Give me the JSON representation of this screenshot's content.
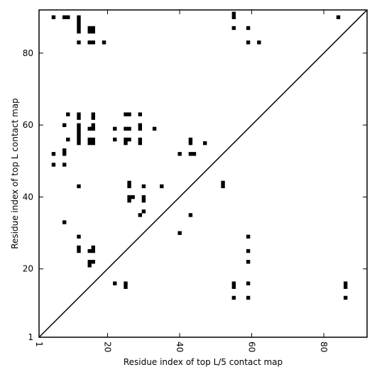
{
  "chart_data": {
    "type": "scatter",
    "title": "",
    "xlabel": "Residue index of top L/5 contact map",
    "ylabel": "Residue index of top L contact map",
    "xlim": [
      1,
      92
    ],
    "ylim": [
      1,
      92
    ],
    "xticks": [
      1,
      20,
      40,
      60,
      80
    ],
    "yticks": [
      1,
      20,
      40,
      60,
      80
    ],
    "xtick_labels": [
      "1",
      "20",
      "40",
      "60",
      "80"
    ],
    "ytick_labels": [
      "1",
      "20",
      "40",
      "60",
      "80"
    ],
    "x_tick_label_rotation_deg": -90,
    "grid": false,
    "legend": "none",
    "marker": "square",
    "marker_color": "#000000",
    "diagonal_line": true,
    "series": [
      {
        "points_upper_left": [
          [
            5,
            90
          ],
          [
            8,
            90
          ],
          [
            9,
            90
          ],
          [
            12,
            90
          ],
          [
            12,
            89
          ],
          [
            12,
            88
          ],
          [
            12,
            87
          ],
          [
            12,
            86
          ],
          [
            15,
            87
          ],
          [
            16,
            87
          ],
          [
            15,
            86
          ],
          [
            16,
            86
          ],
          [
            12,
            83
          ],
          [
            15,
            83
          ],
          [
            16,
            83
          ],
          [
            19,
            83
          ],
          [
            55,
            91
          ],
          [
            55,
            90
          ],
          [
            55,
            87
          ],
          [
            59,
            87
          ],
          [
            59,
            83
          ],
          [
            62,
            83
          ],
          [
            84,
            90
          ],
          [
            9,
            63
          ],
          [
            12,
            63
          ],
          [
            12,
            62
          ],
          [
            16,
            63
          ],
          [
            16,
            62
          ],
          [
            25,
            63
          ],
          [
            26,
            63
          ],
          [
            29,
            63
          ],
          [
            8,
            60
          ],
          [
            12,
            60
          ],
          [
            12,
            59
          ],
          [
            12,
            58
          ],
          [
            12,
            57
          ],
          [
            12,
            56
          ],
          [
            12,
            55
          ],
          [
            15,
            59
          ],
          [
            16,
            60
          ],
          [
            16,
            59
          ],
          [
            22,
            59
          ],
          [
            25,
            59
          ],
          [
            26,
            59
          ],
          [
            29,
            60
          ],
          [
            29,
            59
          ],
          [
            33,
            59
          ],
          [
            9,
            56
          ],
          [
            15,
            56
          ],
          [
            16,
            56
          ],
          [
            15,
            55
          ],
          [
            16,
            55
          ],
          [
            22,
            56
          ],
          [
            25,
            56
          ],
          [
            26,
            56
          ],
          [
            25,
            55
          ],
          [
            29,
            56
          ],
          [
            29,
            55
          ],
          [
            43,
            56
          ],
          [
            43,
            55
          ],
          [
            47,
            55
          ],
          [
            5,
            52
          ],
          [
            8,
            53
          ],
          [
            8,
            52
          ],
          [
            40,
            52
          ],
          [
            43,
            52
          ],
          [
            44,
            52
          ],
          [
            5,
            49
          ],
          [
            8,
            49
          ],
          [
            12,
            43
          ],
          [
            26,
            44
          ],
          [
            26,
            43
          ],
          [
            30,
            43
          ],
          [
            35,
            43
          ],
          [
            52,
            44
          ],
          [
            52,
            43
          ],
          [
            26,
            40
          ],
          [
            27,
            40
          ],
          [
            26,
            39
          ],
          [
            30,
            40
          ],
          [
            30,
            39
          ],
          [
            30,
            36
          ],
          [
            29,
            35
          ],
          [
            8,
            33
          ]
        ]
      },
      {
        "points_lower_right": [
          [
            43,
            35
          ],
          [
            40,
            30
          ],
          [
            59,
            29
          ],
          [
            12,
            29
          ],
          [
            12,
            26
          ],
          [
            12,
            25
          ],
          [
            15,
            25
          ],
          [
            16,
            26
          ],
          [
            16,
            25
          ],
          [
            59,
            25
          ],
          [
            15,
            22
          ],
          [
            16,
            22
          ],
          [
            15,
            21
          ],
          [
            59,
            22
          ],
          [
            22,
            16
          ],
          [
            25,
            16
          ],
          [
            25,
            15
          ],
          [
            55,
            16
          ],
          [
            55,
            15
          ],
          [
            59,
            16
          ],
          [
            86,
            16
          ],
          [
            86,
            15
          ],
          [
            55,
            12
          ],
          [
            59,
            12
          ],
          [
            86,
            12
          ]
        ]
      }
    ]
  }
}
